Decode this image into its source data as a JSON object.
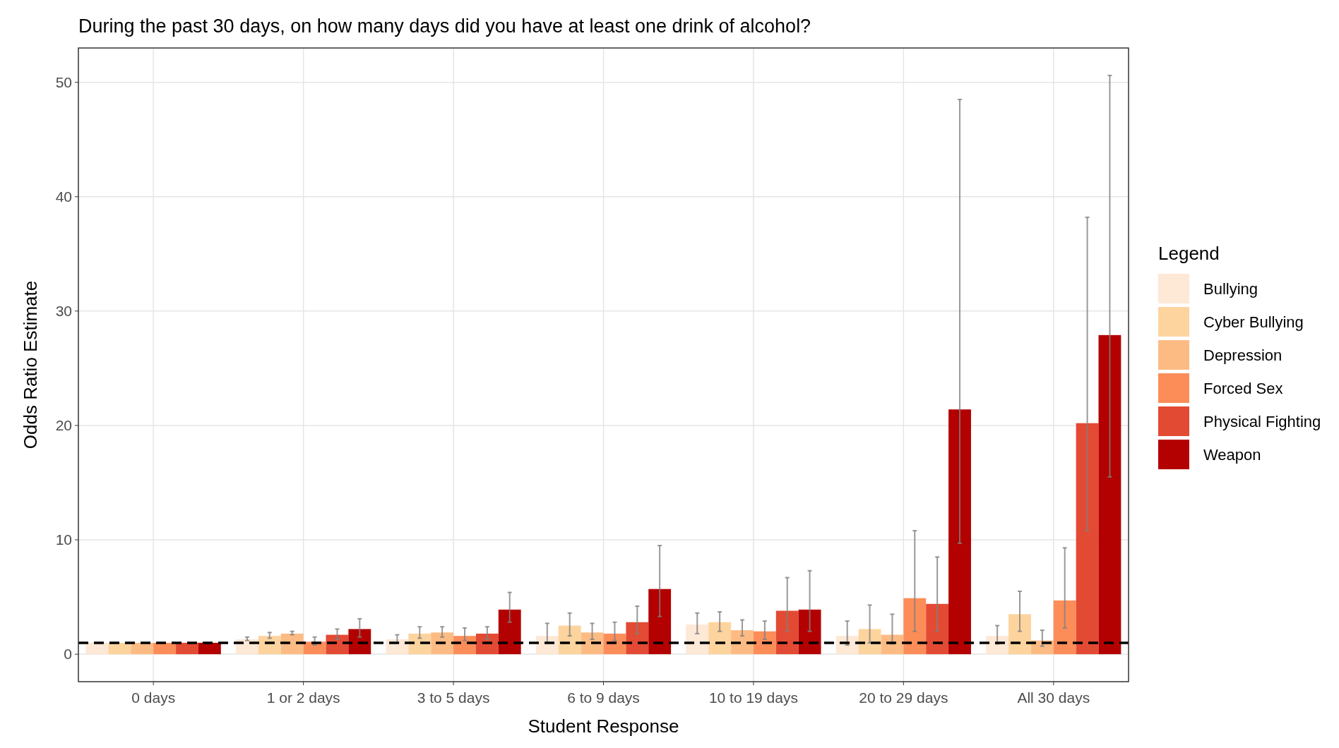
{
  "chart_data": {
    "type": "bar",
    "title": "During the past 30 days, on how many days did you have at least one drink of alcohol?",
    "xlabel": "Student Response",
    "ylabel": "Odds Ratio Estimate",
    "legend_title": "Legend",
    "legend": "right",
    "grid": true,
    "categories": [
      "0 days",
      "1 or 2 days",
      "3 to 5 days",
      "6 to 9 days",
      "10 to 19 days",
      "20 to 29 days",
      "All 30 days"
    ],
    "ylim": [
      -2.4,
      53
    ],
    "yticks": [
      0,
      10,
      20,
      30,
      40,
      50
    ],
    "ref_lines": [
      {
        "axis": "y",
        "value": 1,
        "color": "#000000",
        "line_style": "dashed"
      }
    ],
    "series": [
      {
        "name": "Bullying",
        "color": "#fee8d6",
        "values": [
          1,
          1.3,
          1.3,
          1.6,
          2.6,
          1.6,
          1.6
        ],
        "errors": [
          null,
          [
            1.2,
            1.5
          ],
          [
            1.0,
            1.7
          ],
          [
            1.0,
            2.7
          ],
          [
            1.8,
            3.6
          ],
          [
            0.8,
            2.9
          ],
          [
            0.9,
            2.5
          ]
        ]
      },
      {
        "name": "Cyber Bullying",
        "color": "#fdd49e",
        "values": [
          1,
          1.6,
          1.8,
          2.5,
          2.8,
          2.2,
          3.5
        ],
        "errors": [
          null,
          [
            1.4,
            1.9
          ],
          [
            1.4,
            2.4
          ],
          [
            1.6,
            3.6
          ],
          [
            2.0,
            3.7
          ],
          [
            1.0,
            4.3
          ],
          [
            2.0,
            5.5
          ]
        ]
      },
      {
        "name": "Depression",
        "color": "#fdbb84",
        "values": [
          1,
          1.8,
          1.9,
          1.9,
          2.1,
          1.7,
          1.2
        ],
        "errors": [
          null,
          [
            1.7,
            2.0
          ],
          [
            1.5,
            2.4
          ],
          [
            1.3,
            2.7
          ],
          [
            1.6,
            3.0
          ],
          [
            0.9,
            3.5
          ],
          [
            0.7,
            2.1
          ]
        ]
      },
      {
        "name": "Forced Sex",
        "color": "#fc8d59",
        "values": [
          1,
          1.1,
          1.6,
          1.8,
          2.0,
          4.9,
          4.7
        ],
        "errors": [
          null,
          [
            0.8,
            1.5
          ],
          [
            1.2,
            2.3
          ],
          [
            1.2,
            2.8
          ],
          [
            1.3,
            2.9
          ],
          [
            2.0,
            10.8
          ],
          [
            2.3,
            9.3
          ]
        ]
      },
      {
        "name": "Physical Fighting",
        "color": "#e34a33",
        "values": [
          1,
          1.7,
          1.8,
          2.8,
          3.8,
          4.4,
          20.2
        ],
        "errors": [
          null,
          [
            1.3,
            2.2
          ],
          [
            1.3,
            2.4
          ],
          [
            1.8,
            4.2
          ],
          [
            2.0,
            6.7
          ],
          [
            2.0,
            8.5
          ],
          [
            10.8,
            38.2
          ]
        ]
      },
      {
        "name": "Weapon",
        "color": "#b30000",
        "values": [
          1,
          2.2,
          3.9,
          5.7,
          3.9,
          21.4,
          27.9
        ],
        "errors": [
          null,
          [
            1.5,
            3.1
          ],
          [
            2.8,
            5.4
          ],
          [
            3.3,
            9.5
          ],
          [
            2.0,
            7.3
          ],
          [
            9.7,
            48.5
          ],
          [
            15.5,
            50.6
          ]
        ]
      }
    ]
  }
}
